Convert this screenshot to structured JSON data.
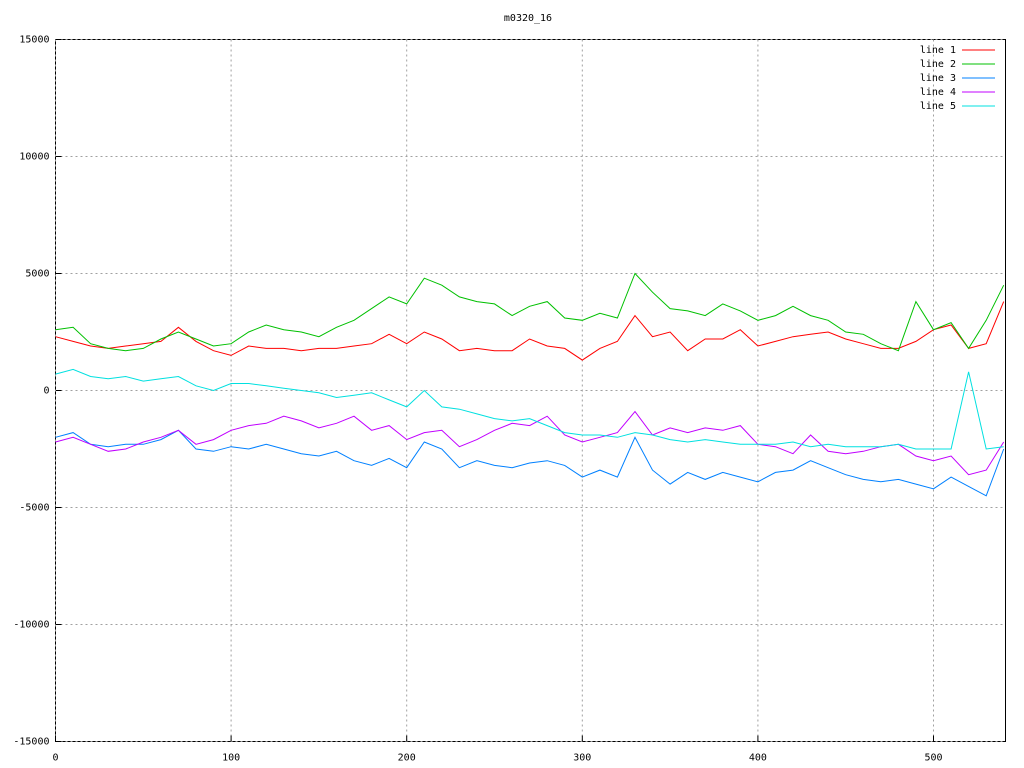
{
  "chart_data": {
    "type": "line",
    "title": "m0320_16",
    "x": [
      0,
      10,
      20,
      30,
      40,
      50,
      60,
      70,
      80,
      90,
      100,
      110,
      120,
      130,
      140,
      150,
      160,
      170,
      180,
      190,
      200,
      210,
      220,
      230,
      240,
      250,
      260,
      270,
      280,
      290,
      300,
      310,
      320,
      330,
      340,
      350,
      360,
      370,
      380,
      390,
      400,
      410,
      420,
      430,
      440,
      450,
      460,
      470,
      480,
      490,
      500,
      510,
      520,
      530,
      540
    ],
    "series": [
      {
        "name": "line 1",
        "color": "#ff0000",
        "values": [
          2300,
          2100,
          1900,
          1800,
          1900,
          2000,
          2100,
          2700,
          2100,
          1700,
          1500,
          1900,
          1800,
          1800,
          1700,
          1800,
          1800,
          1900,
          2000,
          2400,
          2000,
          2500,
          2200,
          1700,
          1800,
          1700,
          1700,
          2200,
          1900,
          1800,
          1300,
          1800,
          2100,
          3200,
          2300,
          2500,
          1700,
          2200,
          2200,
          2600,
          1900,
          2100,
          2300,
          2400,
          2500,
          2200,
          2000,
          1800,
          1800,
          2100,
          2600,
          2800,
          1800,
          2000,
          3800
        ]
      },
      {
        "name": "line 2",
        "color": "#00c000",
        "values": [
          2600,
          2700,
          2000,
          1800,
          1700,
          1800,
          2200,
          2500,
          2200,
          1900,
          2000,
          2500,
          2800,
          2600,
          2500,
          2300,
          2700,
          3000,
          3500,
          4000,
          3700,
          4800,
          4500,
          4000,
          3800,
          3700,
          3200,
          3600,
          3800,
          3100,
          3000,
          3300,
          3100,
          5000,
          4200,
          3500,
          3400,
          3200,
          3700,
          3400,
          3000,
          3200,
          3600,
          3200,
          3000,
          2500,
          2400,
          2000,
          1700,
          3800,
          2600,
          2900,
          1800,
          3000,
          4500
        ]
      },
      {
        "name": "line 3",
        "color": "#0080ff",
        "values": [
          -2000,
          -1800,
          -2300,
          -2400,
          -2300,
          -2300,
          -2100,
          -1700,
          -2500,
          -2600,
          -2400,
          -2500,
          -2300,
          -2500,
          -2700,
          -2800,
          -2600,
          -3000,
          -3200,
          -2900,
          -3300,
          -2200,
          -2500,
          -3300,
          -3000,
          -3200,
          -3300,
          -3100,
          -3000,
          -3200,
          -3700,
          -3400,
          -3700,
          -2000,
          -3400,
          -4000,
          -3500,
          -3800,
          -3500,
          -3700,
          -3900,
          -3500,
          -3400,
          -3000,
          -3300,
          -3600,
          -3800,
          -3900,
          -3800,
          -4000,
          -4200,
          -3700,
          -4100,
          -4500,
          -2500
        ]
      },
      {
        "name": "line 4",
        "color": "#c000ff",
        "values": [
          -2200,
          -2000,
          -2300,
          -2600,
          -2500,
          -2200,
          -2000,
          -1700,
          -2300,
          -2100,
          -1700,
          -1500,
          -1400,
          -1100,
          -1300,
          -1600,
          -1400,
          -1100,
          -1700,
          -1500,
          -2100,
          -1800,
          -1700,
          -2400,
          -2100,
          -1700,
          -1400,
          -1500,
          -1100,
          -1900,
          -2200,
          -2000,
          -1800,
          -900,
          -1900,
          -1600,
          -1800,
          -1600,
          -1700,
          -1500,
          -2300,
          -2400,
          -2700,
          -1900,
          -2600,
          -2700,
          -2600,
          -2400,
          -2300,
          -2800,
          -3000,
          -2800,
          -3600,
          -3400,
          -2200
        ]
      },
      {
        "name": "line 5",
        "color": "#00e0e0",
        "values": [
          700,
          900,
          600,
          500,
          600,
          400,
          500,
          600,
          200,
          0,
          300,
          300,
          200,
          100,
          0,
          -100,
          -300,
          -200,
          -100,
          -400,
          -700,
          0,
          -700,
          -800,
          -1000,
          -1200,
          -1300,
          -1200,
          -1500,
          -1800,
          -1900,
          -1900,
          -2000,
          -1800,
          -1900,
          -2100,
          -2200,
          -2100,
          -2200,
          -2300,
          -2300,
          -2300,
          -2200,
          -2400,
          -2300,
          -2400,
          -2400,
          -2400,
          -2300,
          -2500,
          -2500,
          -2500,
          800,
          -2500,
          -2400
        ]
      }
    ],
    "xlim": [
      0,
      541
    ],
    "xticks": [
      0,
      100,
      200,
      300,
      400,
      500
    ],
    "ylim": [
      -15000,
      15000
    ],
    "yticks": [
      -15000,
      -10000,
      -5000,
      0,
      5000,
      10000,
      15000
    ],
    "grid": true,
    "legend": "top-right"
  }
}
